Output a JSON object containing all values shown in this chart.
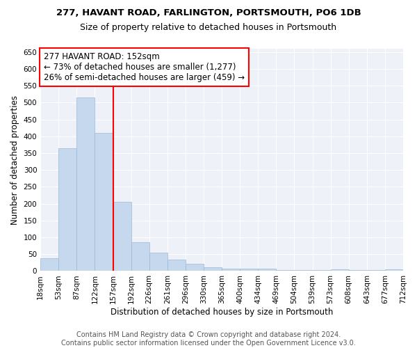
{
  "title": "277, HAVANT ROAD, FARLINGTON, PORTSMOUTH, PO6 1DB",
  "subtitle": "Size of property relative to detached houses in Portsmouth",
  "xlabel": "Distribution of detached houses by size in Portsmouth",
  "ylabel": "Number of detached properties",
  "bar_values": [
    38,
    365,
    515,
    410,
    205,
    85,
    55,
    35,
    22,
    12,
    8,
    8,
    8,
    2,
    2,
    2,
    6,
    2,
    2,
    5
  ],
  "bin_labels": [
    "18sqm",
    "53sqm",
    "87sqm",
    "122sqm",
    "157sqm",
    "192sqm",
    "226sqm",
    "261sqm",
    "296sqm",
    "330sqm",
    "365sqm",
    "400sqm",
    "434sqm",
    "469sqm",
    "504sqm",
    "539sqm",
    "573sqm",
    "608sqm",
    "643sqm",
    "677sqm",
    "712sqm"
  ],
  "bar_color": "#c5d8ed",
  "bar_edgecolor": "#9ab8d4",
  "vline_x": 3.5,
  "vline_color": "red",
  "annotation_box_text": "277 HAVANT ROAD: 152sqm\n← 73% of detached houses are smaller (1,277)\n26% of semi-detached houses are larger (459) →",
  "ylim": [
    0,
    660
  ],
  "yticks": [
    0,
    50,
    100,
    150,
    200,
    250,
    300,
    350,
    400,
    450,
    500,
    550,
    600,
    650
  ],
  "bg_color": "#eef2f8",
  "footer_text": "Contains HM Land Registry data © Crown copyright and database right 2024.\nContains public sector information licensed under the Open Government Licence v3.0.",
  "title_fontsize": 9.5,
  "subtitle_fontsize": 9,
  "xlabel_fontsize": 8.5,
  "ylabel_fontsize": 8.5,
  "footer_fontsize": 7,
  "annotation_fontsize": 8.5,
  "tick_fontsize": 7.5
}
